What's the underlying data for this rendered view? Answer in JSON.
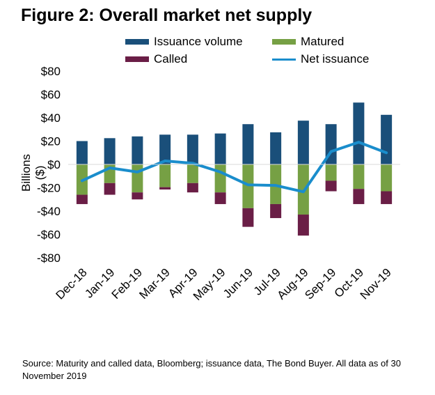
{
  "chart_data": {
    "type": "bar",
    "title": "Figure 2: Overall market net supply",
    "ylabel": "Billions ($)",
    "xlabel": "",
    "ylim": [
      -80,
      80
    ],
    "yticks": [
      80,
      60,
      40,
      20,
      0,
      -20,
      -40,
      -60,
      -80
    ],
    "ytick_labels": [
      "$80",
      "$60",
      "$40",
      "$20",
      "$0",
      "-$20",
      "-$40",
      "-$60",
      "-$80"
    ],
    "grid": false,
    "legend_position": "top",
    "categories": [
      "Dec-18",
      "Jan-19",
      "Feb-19",
      "Mar-19",
      "Apr-19",
      "May-19",
      "Jun-19",
      "Jul-19",
      "Aug-19",
      "Sep-19",
      "Oct-19",
      "Nov-19"
    ],
    "series": [
      {
        "name": "Issuance volume",
        "kind": "bar",
        "color": "#1a4f7a",
        "values": [
          20,
          22.5,
          24,
          25.5,
          25.5,
          26.5,
          34.5,
          27.5,
          37.5,
          34.5,
          53,
          42.5
        ]
      },
      {
        "name": "Matured",
        "kind": "bar",
        "color": "#76a044",
        "values": [
          -26,
          -16,
          -24,
          -19.5,
          -16,
          -24,
          -37.5,
          -34,
          -43,
          -14,
          -21,
          -23
        ]
      },
      {
        "name": "Called",
        "kind": "bar",
        "color": "#6a1e46",
        "values": [
          -8,
          -10,
          -6,
          -2,
          -8,
          -10,
          -16,
          -12,
          -18,
          -9,
          -13,
          -11
        ]
      },
      {
        "name": "Net issuance",
        "kind": "line",
        "color": "#1a8dcc",
        "values": [
          -14,
          -3,
          -6.5,
          3,
          1,
          -6.5,
          -17.5,
          -18,
          -23.5,
          11,
          19,
          10
        ]
      }
    ]
  },
  "source_note": "Source: Maturity and called data, Bloomberg; issuance data, The Bond Buyer. All data as of 30 November 2019"
}
